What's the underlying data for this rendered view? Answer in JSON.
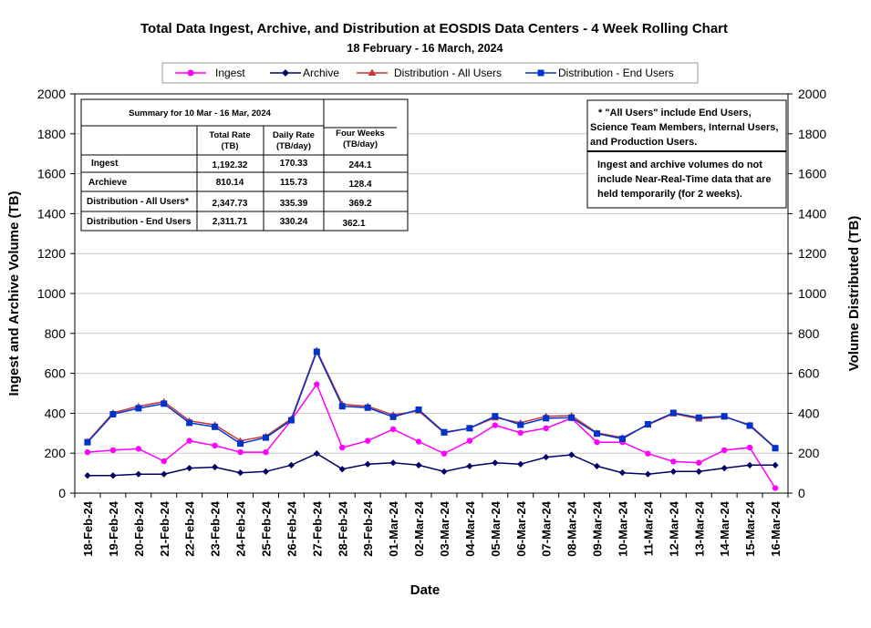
{
  "chart_data": {
    "type": "line",
    "title": "Total Data Ingest, Archive, and  Distribution at EOSDIS Data Centers - 4 Week Rolling Chart",
    "subtitle": "18  February   -  16  March,  2024",
    "xlabel": "Date",
    "ylabel_left": "Ingest and Archive Volume (TB)",
    "ylabel_right": "Volume Distributed (TB)",
    "ylim": [
      0,
      2000
    ],
    "yticks": [
      "0",
      "200",
      "400",
      "600",
      "800",
      "1000",
      "1200",
      "1400",
      "1600",
      "1800",
      "2000"
    ],
    "yticks_right": [
      "0",
      "200",
      "400",
      "600",
      "800",
      "1000",
      "1200",
      "1400",
      "1600",
      "1800",
      "2000"
    ],
    "grid": true,
    "legend_position": "top",
    "categories": [
      "18-Feb-24",
      "19-Feb-24",
      "20-Feb-24",
      "21-Feb-24",
      "22-Feb-24",
      "23-Feb-24",
      "24-Feb-24",
      "25-Feb-24",
      "26-Feb-24",
      "27-Feb-24",
      "28-Feb-24",
      "29-Feb-24",
      "01-Mar-24",
      "02-Mar-24",
      "03-Mar-24",
      "04-Mar-24",
      "05-Mar-24",
      "06-Mar-24",
      "07-Mar-24",
      "08-Mar-24",
      "09-Mar-24",
      "10-Mar-24",
      "11-Mar-24",
      "12-Mar-24",
      "13-Mar-24",
      "14-Mar-24",
      "15-Mar-24",
      "16-Mar-24"
    ],
    "series": [
      {
        "name": "Ingest",
        "color": "#ff00ff",
        "marker": "circle",
        "values": [
          205,
          215,
          222,
          160,
          262,
          238,
          205,
          205,
          365,
          545,
          228,
          262,
          320,
          258,
          198,
          262,
          340,
          302,
          325,
          375,
          255,
          255,
          198,
          158,
          152,
          215,
          228,
          25
        ]
      },
      {
        "name": "Archive",
        "color": "#000066",
        "marker": "diamond",
        "values": [
          88,
          88,
          95,
          95,
          125,
          130,
          102,
          108,
          140,
          198,
          120,
          145,
          152,
          140,
          108,
          135,
          152,
          145,
          180,
          192,
          135,
          102,
          95,
          108,
          108,
          125,
          140,
          140
        ]
      },
      {
        "name": "Distribution - All Users",
        "color": "#cc3333",
        "marker": "triangle",
        "values": [
          258,
          402,
          435,
          458,
          362,
          342,
          262,
          285,
          372,
          715,
          445,
          435,
          392,
          412,
          302,
          325,
          378,
          352,
          385,
          388,
          302,
          278,
          342,
          398,
          372,
          382,
          342,
          228
        ]
      },
      {
        "name": "Distribution - End Users",
        "color": "#0033cc",
        "marker": "square",
        "values": [
          255,
          395,
          425,
          448,
          352,
          332,
          248,
          278,
          365,
          708,
          435,
          428,
          382,
          418,
          305,
          325,
          385,
          342,
          375,
          378,
          298,
          272,
          345,
          402,
          378,
          385,
          338,
          225
        ]
      }
    ],
    "summary_table": {
      "title": "Summary  for  10  Mar   -  16  Mar,  2024",
      "headers": [
        {
          "line1": "Total Rate",
          "line2": "(TB)"
        },
        {
          "line1": "Daily Rate",
          "line2": "(TB/day)"
        },
        {
          "line1": "Four Weeks",
          "line2": "(TB/day)"
        }
      ],
      "rows": [
        {
          "label": "Ingest",
          "total": "1,192.32",
          "daily": "170.33",
          "four_weeks": "244.1"
        },
        {
          "label": "Archieve",
          "total": "810.14",
          "daily": "115.73",
          "four_weeks": "128.4"
        },
        {
          "label": "Distribution - All Users*",
          "total": "2,347.73",
          "daily": "335.39",
          "four_weeks": "369.2"
        },
        {
          "label": "Distribution - End Users",
          "total": "2,311.71",
          "daily": "330.24",
          "four_weeks": "362.1"
        }
      ]
    },
    "annotations": [
      {
        "lines": [
          "* \"All Users\" include End Users,",
          "Science Team Members,  Internal Users,",
          "and Production Users."
        ]
      },
      {
        "lines": [
          "Ingest and archive volumes do not",
          "include Near-Real-Time data that are",
          "held temporarily (for 2 weeks)."
        ]
      }
    ]
  }
}
